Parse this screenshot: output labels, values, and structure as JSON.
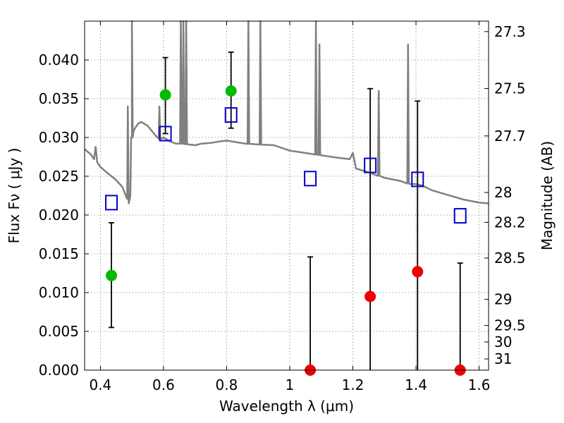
{
  "chart_data": {
    "type": "scatter",
    "xlabel": "Wavelength  λ (μm)",
    "ylabel": "Flux  Fν  ( μJy )",
    "y2label": "Magnitude (AB)",
    "xlim": [
      0.35,
      1.63
    ],
    "ylim": [
      0.0,
      0.045
    ],
    "grid": true,
    "x_ticks": [
      0.4,
      0.6,
      0.8,
      1.0,
      1.2,
      1.4,
      1.6
    ],
    "x_tick_labels": [
      "0.4",
      "0.6",
      "0.8",
      "1",
      "1.2",
      "1.4",
      "1.6"
    ],
    "y_ticks": [
      0.0,
      0.005,
      0.01,
      0.015,
      0.02,
      0.025,
      0.03,
      0.035,
      0.04
    ],
    "y_tick_labels": [
      "0.000",
      "0.005",
      "0.010",
      "0.015",
      "0.020",
      "0.025",
      "0.030",
      "0.035",
      "0.040"
    ],
    "mag_ticks": [
      27.3,
      27.5,
      27.7,
      28,
      28.2,
      28.5,
      29,
      29.5,
      30,
      31
    ],
    "mag_tick_labels": [
      "27.3",
      "27.5",
      "27.7",
      "28",
      "28.2",
      "28.5",
      "29",
      "29.5",
      "30",
      "31"
    ],
    "colors": {
      "model": "#808080",
      "detection": "#00bb00",
      "upper_limit": "#ee0000",
      "model_phot": "#0000cc",
      "errorbar": "#000000",
      "grid": "#888888"
    },
    "model_spectrum": {
      "x": [
        0.35,
        0.37,
        0.38,
        0.385,
        0.39,
        0.4,
        0.42,
        0.45,
        0.47,
        0.485,
        0.49,
        0.495,
        0.5,
        0.505,
        0.51,
        0.52,
        0.53,
        0.55,
        0.57,
        0.58,
        0.59,
        0.6,
        0.62,
        0.64,
        0.66,
        0.68,
        0.7,
        0.72,
        0.75,
        0.78,
        0.8,
        0.83,
        0.86,
        0.9,
        0.95,
        1.0,
        1.05,
        1.1,
        1.15,
        1.19,
        1.2,
        1.21,
        1.25,
        1.3,
        1.35,
        1.38,
        1.4,
        1.42,
        1.45,
        1.5,
        1.55,
        1.6,
        1.63
      ],
      "y": [
        0.0285,
        0.0278,
        0.0272,
        0.0288,
        0.0268,
        0.0262,
        0.0255,
        0.0245,
        0.0236,
        0.0225,
        0.0215,
        0.0225,
        0.03,
        0.0308,
        0.0312,
        0.0318,
        0.032,
        0.0315,
        0.0305,
        0.03,
        0.0298,
        0.03,
        0.0295,
        0.0292,
        0.0292,
        0.0291,
        0.029,
        0.0292,
        0.0293,
        0.0295,
        0.0296,
        0.0294,
        0.0292,
        0.0291,
        0.029,
        0.0283,
        0.028,
        0.0277,
        0.0274,
        0.0272,
        0.028,
        0.026,
        0.0255,
        0.0248,
        0.0244,
        0.024,
        0.024,
        0.0238,
        0.0232,
        0.0226,
        0.022,
        0.0216,
        0.0215
      ]
    },
    "emission_lines": [
      {
        "x": 0.487,
        "peak": 0.034
      },
      {
        "x": 0.5,
        "peak": 0.045
      },
      {
        "x": 0.587,
        "peak": 0.034
      },
      {
        "x": 0.655,
        "peak": 0.045
      },
      {
        "x": 0.663,
        "peak": 0.045
      },
      {
        "x": 0.672,
        "peak": 0.045
      },
      {
        "x": 0.869,
        "peak": 0.045
      },
      {
        "x": 0.907,
        "peak": 0.045
      },
      {
        "x": 1.083,
        "peak": 0.045
      },
      {
        "x": 1.094,
        "peak": 0.042
      },
      {
        "x": 1.282,
        "peak": 0.036
      },
      {
        "x": 1.375,
        "peak": 0.042
      }
    ],
    "detections": [
      {
        "x": 0.435,
        "y": 0.0122,
        "err_low": 0.0055,
        "err_high": 0.019
      },
      {
        "x": 0.606,
        "y": 0.0355,
        "err_low": 0.0305,
        "err_high": 0.0403
      },
      {
        "x": 0.814,
        "y": 0.036,
        "err_low": 0.0312,
        "err_high": 0.041
      }
    ],
    "upper_limits": [
      {
        "x": 1.065,
        "y": 0.0,
        "err_low": 0.0,
        "err_high": 0.0146
      },
      {
        "x": 1.255,
        "y": 0.0095,
        "err_low": 0.0,
        "err_high": 0.0363
      },
      {
        "x": 1.405,
        "y": 0.0127,
        "err_low": 0.0,
        "err_high": 0.0347
      },
      {
        "x": 1.54,
        "y": 0.0,
        "err_low": 0.0,
        "err_high": 0.0138
      }
    ],
    "model_photometry": [
      {
        "x": 0.435,
        "y": 0.0216
      },
      {
        "x": 0.606,
        "y": 0.0305
      },
      {
        "x": 0.814,
        "y": 0.0329
      },
      {
        "x": 1.065,
        "y": 0.0247
      },
      {
        "x": 1.255,
        "y": 0.0264
      },
      {
        "x": 1.405,
        "y": 0.0246
      },
      {
        "x": 1.54,
        "y": 0.0199
      }
    ]
  }
}
